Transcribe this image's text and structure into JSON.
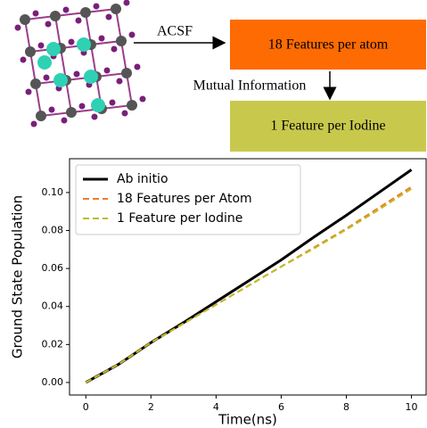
{
  "diagram": {
    "nodes": [
      {
        "label": "18 Features per atom"
      },
      {
        "label": "1 Feature per Iodine"
      }
    ],
    "edges": [
      {
        "label": "ACSF"
      },
      {
        "label": "Mutual Information"
      }
    ]
  },
  "chart_data": {
    "type": "line",
    "x_label": "Time(ns)",
    "y_label": "Ground State Population",
    "x": [
      0,
      1,
      2,
      3,
      4,
      5,
      6,
      7,
      8,
      9,
      10
    ],
    "series": [
      {
        "name": "Ab initio",
        "color": "#000000",
        "style": "solid",
        "values": [
          0,
          0.0095,
          0.021,
          0.0315,
          0.0425,
          0.0535,
          0.0645,
          0.0765,
          0.088,
          0.1,
          0.112
        ]
      },
      {
        "name": "18 Features per Atom",
        "color": "#f07b2c",
        "style": "dashed",
        "values": [
          0,
          0.0095,
          0.021,
          0.031,
          0.041,
          0.051,
          0.061,
          0.071,
          0.081,
          0.092,
          0.103
        ]
      },
      {
        "name": "1 Feature per Iodine",
        "color": "#bcbd22",
        "style": "dashed",
        "values": [
          0,
          0.0095,
          0.021,
          0.031,
          0.041,
          0.051,
          0.061,
          0.0705,
          0.0805,
          0.091,
          0.102
        ]
      }
    ],
    "xlim": [
      -0.5,
      10.45
    ],
    "ylim": [
      -0.0066,
      0.1178
    ],
    "xticks": [
      0,
      2,
      4,
      6,
      8,
      10
    ],
    "yticks": [
      {
        "value": 0,
        "label": "0.00"
      },
      {
        "value": 0.02,
        "label": "0.02"
      },
      {
        "value": 0.04,
        "label": "0.04"
      },
      {
        "value": 0.06,
        "label": "0.06"
      },
      {
        "value": 0.08,
        "label": "0.08"
      },
      {
        "value": 0.1,
        "label": "0.10"
      }
    ],
    "legend": "upper left",
    "grid": false
  }
}
